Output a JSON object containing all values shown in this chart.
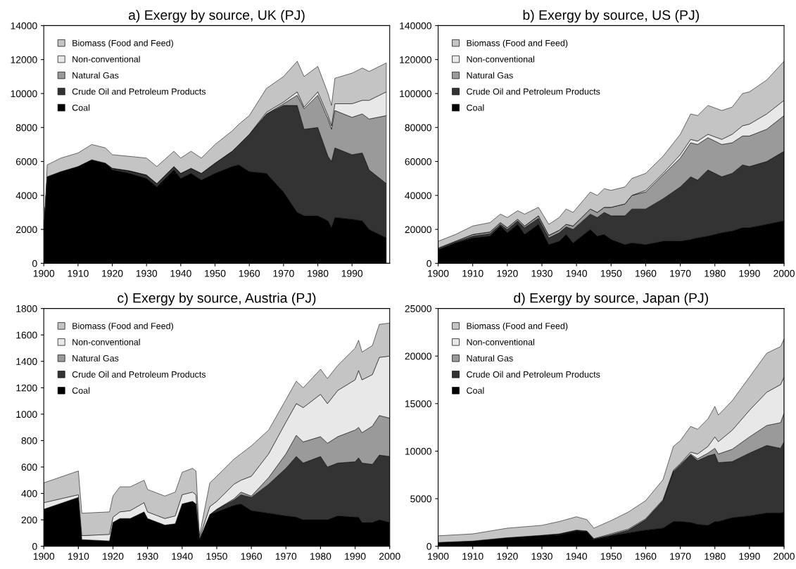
{
  "chart_data": [
    {
      "type": "area",
      "stacked": true,
      "title": "a) Exergy by source, UK (PJ)",
      "legend": "top left",
      "grid": false,
      "x": [
        1900,
        1901,
        1905,
        1910,
        1914,
        1918,
        1920,
        1925,
        1930,
        1933,
        1938,
        1940,
        1943,
        1946,
        1950,
        1955,
        1957,
        1960,
        1965,
        1970,
        1974,
        1976,
        1980,
        1983,
        1984,
        1985,
        1990,
        1993,
        1995,
        2000
      ],
      "xlim": [
        1900,
        2001
      ],
      "xticks": [
        1900,
        1910,
        1920,
        1930,
        1940,
        1950,
        1960,
        1970,
        1980,
        1990
      ],
      "ylim": [
        0,
        14000
      ],
      "yticks": [
        0,
        2000,
        4000,
        6000,
        8000,
        10000,
        12000,
        14000
      ],
      "series": [
        {
          "name": "Coal",
          "color": "#000000",
          "values": [
            1800,
            5100,
            5400,
            5700,
            6100,
            5900,
            5500,
            5300,
            5000,
            4500,
            5500,
            5000,
            5300,
            4900,
            5300,
            5700,
            5800,
            5400,
            5300,
            4200,
            3000,
            2800,
            2800,
            2500,
            2100,
            2700,
            2600,
            2500,
            2000,
            1500
          ]
        },
        {
          "name": "Crude Oil and Petroleum Products",
          "color": "#333333",
          "values": [
            0,
            0,
            0,
            0,
            0,
            0,
            100,
            150,
            200,
            200,
            200,
            300,
            300,
            400,
            600,
            900,
            1200,
            2200,
            3500,
            5100,
            6300,
            5100,
            5200,
            3800,
            3900,
            4100,
            3800,
            4000,
            3500,
            3200
          ]
        },
        {
          "name": "Natural Gas",
          "color": "#9a9a9a",
          "values": [
            0,
            0,
            0,
            0,
            0,
            0,
            0,
            0,
            0,
            0,
            0,
            0,
            0,
            0,
            0,
            0,
            0,
            0,
            0,
            100,
            600,
            1200,
            1900,
            2200,
            1900,
            2200,
            2200,
            2300,
            3000,
            4000
          ]
        },
        {
          "name": "Non-conventional",
          "color": "#e8e8e8",
          "values": [
            0,
            0,
            0,
            0,
            0,
            0,
            0,
            0,
            0,
            0,
            0,
            0,
            0,
            0,
            0,
            0,
            0,
            0,
            100,
            100,
            200,
            100,
            200,
            200,
            200,
            400,
            800,
            800,
            1100,
            1400
          ]
        },
        {
          "name": "Biomass (Food and Feed)",
          "color": "#c4c4c4",
          "values": [
            0,
            700,
            800,
            800,
            900,
            900,
            800,
            850,
            1000,
            1000,
            900,
            900,
            1000,
            900,
            1100,
            1200,
            1200,
            1100,
            1400,
            1500,
            1800,
            1800,
            1500,
            1300,
            1200,
            1500,
            1800,
            1900,
            1700,
            1700
          ]
        }
      ]
    },
    {
      "type": "area",
      "stacked": true,
      "title": "b) Exergy by source, US (PJ)",
      "legend": "top left",
      "grid": false,
      "x": [
        1900,
        1905,
        1910,
        1915,
        1918,
        1920,
        1923,
        1925,
        1929,
        1932,
        1935,
        1937,
        1939,
        1944,
        1946,
        1948,
        1950,
        1954,
        1956,
        1960,
        1965,
        1970,
        1973,
        1975,
        1978,
        1982,
        1985,
        1988,
        1990,
        1995,
        2000
      ],
      "xlim": [
        1900,
        2000
      ],
      "xticks": [
        1900,
        1910,
        1920,
        1930,
        1940,
        1950,
        1960,
        1970,
        1980,
        1990,
        2000
      ],
      "ylim": [
        0,
        140000
      ],
      "yticks": [
        0,
        20000,
        40000,
        60000,
        80000,
        100000,
        120000,
        140000
      ],
      "series": [
        {
          "name": "Coal",
          "color": "#000000",
          "values": [
            8000,
            12000,
            15000,
            16000,
            22000,
            18000,
            23000,
            17000,
            23000,
            11000,
            13000,
            17000,
            12000,
            20000,
            16000,
            17000,
            14000,
            11000,
            12000,
            11000,
            13000,
            13000,
            14000,
            15000,
            16000,
            18000,
            19000,
            21000,
            21000,
            23000,
            25000
          ]
        },
        {
          "name": "Crude Oil and Petroleum Products",
          "color": "#333333",
          "values": [
            500,
            500,
            1000,
            1500,
            1000,
            2000,
            2000,
            4000,
            3500,
            4000,
            5000,
            4500,
            8000,
            9000,
            11000,
            13000,
            14000,
            17000,
            20000,
            21000,
            25000,
            32000,
            37000,
            34000,
            39000,
            33000,
            34000,
            37000,
            36000,
            37000,
            41000
          ]
        },
        {
          "name": "Natural Gas",
          "color": "#9a9a9a",
          "values": [
            500,
            500,
            1000,
            1000,
            1000,
            1000,
            1000,
            1000,
            1500,
            1500,
            1500,
            1500,
            2000,
            3000,
            3000,
            3000,
            5000,
            7000,
            8000,
            10000,
            14000,
            17000,
            20000,
            21000,
            19000,
            19000,
            18000,
            17000,
            18000,
            19000,
            21000
          ]
        },
        {
          "name": "Non-conventional",
          "color": "#e8e8e8",
          "values": [
            0,
            0,
            0,
            0,
            0,
            0,
            0,
            0,
            0,
            0,
            0,
            0,
            0,
            0,
            0,
            0,
            0,
            0,
            0,
            1000,
            1000,
            2000,
            2000,
            2000,
            2000,
            3000,
            5000,
            6000,
            7000,
            9000,
            9000
          ]
        },
        {
          "name": "Biomass (Food and Feed)",
          "color": "#c4c4c4",
          "values": [
            4000,
            4000,
            5000,
            5500,
            5000,
            6000,
            5000,
            7000,
            5000,
            6500,
            7500,
            9000,
            8000,
            10000,
            10000,
            11000,
            10000,
            10000,
            10000,
            10000,
            10000,
            12000,
            15000,
            15000,
            17000,
            17000,
            16000,
            19000,
            19000,
            20000,
            23000
          ]
        }
      ]
    },
    {
      "type": "area",
      "stacked": true,
      "title": "c) Exergy by source, Austria (PJ)",
      "legend": "top left",
      "grid": false,
      "x": [
        1900,
        1910,
        1911,
        1919,
        1920,
        1922,
        1925,
        1929,
        1930,
        1935,
        1938,
        1940,
        1943,
        1944,
        1945,
        1948,
        1950,
        1955,
        1957,
        1960,
        1965,
        1970,
        1973,
        1975,
        1980,
        1982,
        1985,
        1990,
        1991,
        1992,
        1995,
        1997,
        2000
      ],
      "xlim": [
        1900,
        2000
      ],
      "xticks": [
        1900,
        1910,
        1920,
        1930,
        1940,
        1950,
        1960,
        1970,
        1980,
        1990,
        2000
      ],
      "ylim": [
        0,
        1800
      ],
      "yticks": [
        0,
        200,
        400,
        600,
        800,
        1000,
        1200,
        1400,
        1600,
        1800
      ],
      "series": [
        {
          "name": "Coal",
          "color": "#000000",
          "values": [
            280,
            370,
            50,
            40,
            180,
            210,
            210,
            260,
            210,
            160,
            170,
            320,
            340,
            320,
            50,
            240,
            260,
            310,
            320,
            270,
            250,
            230,
            220,
            200,
            200,
            200,
            230,
            220,
            220,
            180,
            180,
            200,
            180
          ]
        },
        {
          "name": "Crude Oil and Petroleum Products",
          "color": "#333333",
          "values": [
            0,
            0,
            0,
            0,
            0,
            0,
            0,
            0,
            0,
            0,
            0,
            0,
            0,
            0,
            0,
            0,
            20,
            40,
            70,
            100,
            220,
            360,
            460,
            430,
            480,
            400,
            400,
            420,
            450,
            450,
            440,
            490,
            500
          ]
        },
        {
          "name": "Natural Gas",
          "color": "#9a9a9a",
          "values": [
            0,
            0,
            0,
            0,
            0,
            0,
            0,
            0,
            0,
            0,
            0,
            0,
            0,
            0,
            0,
            0,
            0,
            10,
            20,
            10,
            50,
            110,
            160,
            160,
            150,
            180,
            200,
            240,
            230,
            230,
            290,
            300,
            290
          ]
        },
        {
          "name": "Non-conventional",
          "color": "#e8e8e8",
          "values": [
            50,
            20,
            30,
            50,
            40,
            50,
            60,
            70,
            50,
            50,
            60,
            70,
            70,
            70,
            10,
            60,
            60,
            110,
            90,
            150,
            180,
            240,
            240,
            260,
            320,
            300,
            350,
            380,
            430,
            400,
            390,
            440,
            470
          ]
        },
        {
          "name": "Biomass (Food and Feed)",
          "color": "#c4c4c4",
          "values": [
            150,
            180,
            170,
            170,
            160,
            190,
            180,
            170,
            170,
            170,
            180,
            170,
            180,
            180,
            20,
            180,
            190,
            190,
            200,
            230,
            180,
            170,
            170,
            150,
            190,
            190,
            190,
            240,
            230,
            210,
            220,
            250,
            250
          ]
        }
      ]
    },
    {
      "type": "area",
      "stacked": true,
      "title": "d) Exergy by source, Japan (PJ)",
      "legend": "top left",
      "grid": false,
      "x": [
        1900,
        1910,
        1920,
        1930,
        1935,
        1940,
        1943,
        1945,
        1950,
        1955,
        1960,
        1965,
        1968,
        1970,
        1973,
        1975,
        1978,
        1980,
        1981,
        1985,
        1990,
        1995,
        1999,
        2000
      ],
      "xlim": [
        1900,
        2000
      ],
      "xticks": [
        1900,
        1910,
        1920,
        1930,
        1940,
        1950,
        1960,
        1970,
        1980,
        1990,
        2000
      ],
      "ylim": [
        0,
        25000
      ],
      "yticks": [
        0,
        5000,
        10000,
        15000,
        20000,
        25000
      ],
      "series": [
        {
          "name": "Coal",
          "color": "#000000",
          "values": [
            400,
            550,
            900,
            1100,
            1200,
            1600,
            1500,
            700,
            1100,
            1400,
            1700,
            1900,
            2600,
            2600,
            2500,
            2300,
            2200,
            2600,
            2600,
            3000,
            3200,
            3500,
            3500,
            3600
          ]
        },
        {
          "name": "Crude Oil and Petroleum Products",
          "color": "#333333",
          "values": [
            0,
            0,
            0,
            50,
            100,
            100,
            100,
            50,
            100,
            300,
            1100,
            2900,
            5200,
            5900,
            7100,
            6700,
            7300,
            7100,
            6200,
            5900,
            6600,
            7100,
            6800,
            7400
          ]
        },
        {
          "name": "Natural Gas",
          "color": "#9a9a9a",
          "values": [
            0,
            0,
            0,
            0,
            0,
            0,
            0,
            0,
            0,
            0,
            0,
            0,
            100,
            100,
            100,
            200,
            300,
            600,
            900,
            1300,
            1700,
            2100,
            2700,
            3000
          ]
        },
        {
          "name": "Non-conventional",
          "color": "#e8e8e8",
          "values": [
            0,
            0,
            0,
            0,
            0,
            0,
            0,
            50,
            100,
            100,
            100,
            100,
            100,
            100,
            200,
            500,
            700,
            1200,
            1300,
            2000,
            2800,
            3500,
            4000,
            3800
          ]
        },
        {
          "name": "Biomass (Food and Feed)",
          "color": "#c4c4c4",
          "values": [
            700,
            750,
            1000,
            1050,
            1300,
            1400,
            1200,
            1100,
            1400,
            1800,
            1900,
            2100,
            2500,
            2400,
            2700,
            2600,
            2900,
            3200,
            2800,
            3100,
            3500,
            4100,
            4000,
            4000
          ]
        }
      ]
    }
  ]
}
